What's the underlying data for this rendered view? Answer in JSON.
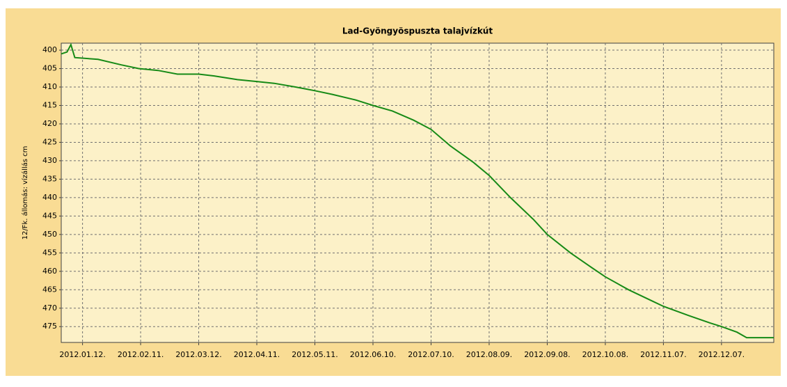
{
  "chart_data": {
    "type": "line",
    "title": "Lad-Gyöngyöspuszta talajvízkút",
    "ylabel": "12/Fk. állomás: vízállás cm",
    "x": [
      "2012-01-01",
      "2012-01-04",
      "2012-01-06",
      "2012-01-08",
      "2012-01-20",
      "2012-02-01",
      "2012-02-10",
      "2012-02-20",
      "2012-03-01",
      "2012-03-12",
      "2012-03-20",
      "2012-04-01",
      "2012-04-11",
      "2012-04-20",
      "2012-05-01",
      "2012-05-11",
      "2012-05-20",
      "2012-06-01",
      "2012-06-10",
      "2012-06-20",
      "2012-07-01",
      "2012-07-10",
      "2012-07-20",
      "2012-08-01",
      "2012-08-09",
      "2012-08-20",
      "2012-09-01",
      "2012-09-08",
      "2012-09-20",
      "2012-10-01",
      "2012-10-08",
      "2012-10-20",
      "2012-11-01",
      "2012-11-07",
      "2012-11-20",
      "2012-12-01",
      "2012-12-07",
      "2012-12-15",
      "2012-12-20",
      "2013-01-03"
    ],
    "series": [
      {
        "name": "12/Fk. állomás",
        "color": "#168a16",
        "values": [
          401,
          400.5,
          398.5,
          402,
          402.5,
          404,
          405,
          405.5,
          406.5,
          406.5,
          407,
          408,
          408.5,
          409,
          410,
          411,
          412,
          413.5,
          415,
          416.5,
          419,
          421.5,
          426,
          430.5,
          434,
          440,
          446,
          450,
          455,
          459,
          461.5,
          465,
          468,
          469.5,
          472,
          474,
          475,
          476.5,
          478,
          478
        ]
      }
    ],
    "xlim": [
      "2012-01-01",
      "2013-01-03"
    ],
    "xticks": [
      {
        "value": "2012-01-12",
        "label": "2012.01.12."
      },
      {
        "value": "2012-02-11",
        "label": "2012.02.11."
      },
      {
        "value": "2012-03-12",
        "label": "2012.03.12."
      },
      {
        "value": "2012-04-11",
        "label": "2012.04.11."
      },
      {
        "value": "2012-05-11",
        "label": "2012.05.11."
      },
      {
        "value": "2012-06-10",
        "label": "2012.06.10."
      },
      {
        "value": "2012-07-10",
        "label": "2012.07.10."
      },
      {
        "value": "2012-08-09",
        "label": "2012.08.09."
      },
      {
        "value": "2012-09-08",
        "label": "2012.09.08."
      },
      {
        "value": "2012-10-08",
        "label": "2012.10.08."
      },
      {
        "value": "2012-11-07",
        "label": "2012.11.07."
      },
      {
        "value": "2012-12-07",
        "label": "2012.12.07."
      }
    ],
    "ylim": [
      479.3,
      398.1
    ],
    "yticks": [
      400,
      405,
      410,
      415,
      420,
      425,
      430,
      435,
      440,
      445,
      450,
      455,
      460,
      465,
      470,
      475
    ],
    "grid": true
  }
}
